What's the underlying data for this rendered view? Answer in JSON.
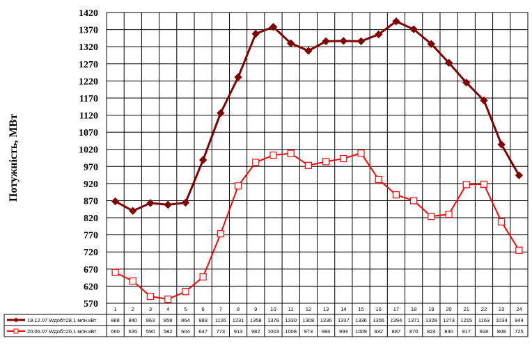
{
  "chart_data": {
    "type": "line",
    "title": "",
    "xlabel": "",
    "ylabel": "Потужність, МВт",
    "ylim": [
      570,
      1420
    ],
    "ytick_step": 50,
    "grid": true,
    "legend_placement": "data-table-left",
    "categories": [
      "1",
      "2",
      "3",
      "4",
      "5",
      "6",
      "7",
      "8",
      "9",
      "10",
      "11",
      "12",
      "13",
      "14",
      "15",
      "16",
      "17",
      "18",
      "19",
      "20",
      "21",
      "22",
      "23",
      "24"
    ],
    "series": [
      {
        "name": "19.12.07 Wдоб=28,1 млн.кВт",
        "color": "#800000",
        "marker": "filled-diamond",
        "values": [
          868,
          840,
          863,
          858,
          864,
          989,
          1126,
          1231,
          1358,
          1378,
          1330,
          1308,
          1336,
          1337,
          1336,
          1356,
          1394,
          1371,
          1328,
          1273,
          1215,
          1163,
          1034,
          944
        ]
      },
      {
        "name": "20.06.07 Wдоб=20,1 млн.кВт",
        "color": "#ff0000",
        "marker": "hollow-square",
        "values": [
          660,
          635,
          590,
          582,
          604,
          647,
          773,
          913,
          982,
          1003,
          1008,
          973,
          984,
          993,
          1009,
          932,
          887,
          870,
          824,
          830,
          917,
          918,
          808,
          725
        ]
      }
    ]
  }
}
